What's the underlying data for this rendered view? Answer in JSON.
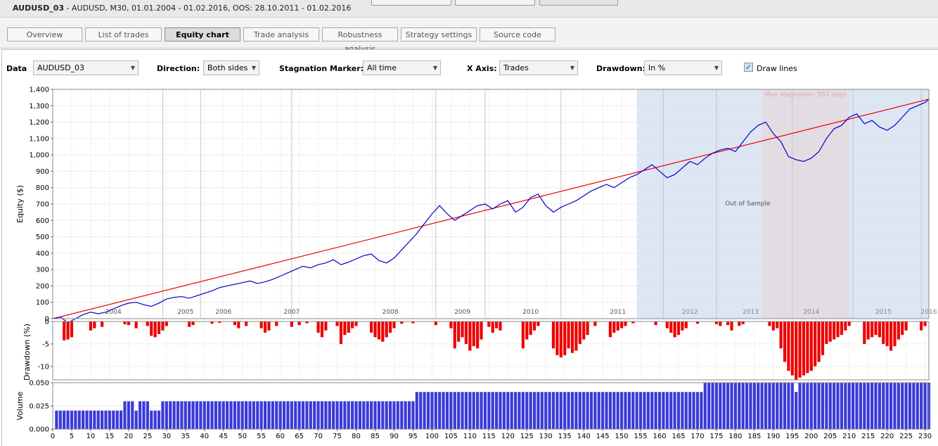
{
  "window": {
    "title_bold": "AUDUSD_03",
    "title_rest": " - AUDUSD, M30, 01.01.2004 - 01.02.2016, OOS: 28.10.2011 - 01.02.2016"
  },
  "tabs": [
    {
      "label": "Overview",
      "active": false
    },
    {
      "label": "List of trades",
      "active": false
    },
    {
      "label": "Equity chart",
      "active": true
    },
    {
      "label": "Trade analysis",
      "active": false
    },
    {
      "label": "Robustness analysis",
      "active": false
    },
    {
      "label": "Strategy settings",
      "active": false
    },
    {
      "label": "Source code",
      "active": false
    }
  ],
  "controls": {
    "data_label": "Data",
    "data_value": "AUDUSD_03",
    "direction_label": "Direction:",
    "direction_value": "Both sides",
    "stagnation_label": "Stagnation Marker:",
    "stagnation_value": "All time",
    "xaxis_label": "X Axis:",
    "xaxis_value": "Trades",
    "drawdown_label": "Drawdown:",
    "drawdown_value": "In %",
    "draw_lines_label": "Draw lines",
    "draw_lines_checked": true,
    "arrow_glyph": "▼",
    "check_glyph": "✓"
  },
  "colors": {
    "equity_line": "#0000cc",
    "trend_line": "#ee0000",
    "drawdown_bar": "#ee0000",
    "volume_bar": "#3a3ad8",
    "oos_shade": "#dde6f4",
    "stagnation_shade": "#e3dce3"
  },
  "chart_data": [
    {
      "type": "line",
      "ylabel": "Equity ($)",
      "ylim": [
        0,
        1400
      ],
      "y_ticks": [
        0,
        100,
        200,
        300,
        400,
        500,
        600,
        700,
        800,
        900,
        1000,
        1100,
        1200,
        1300,
        1400
      ],
      "y_tick_labels": [
        "0",
        "100",
        "200",
        "300",
        "400",
        "500",
        "600",
        "700",
        "800",
        "900",
        "1,000",
        "1,100",
        "1,200",
        "1,300",
        "1,400"
      ],
      "xlim": [
        0,
        231
      ],
      "grid": true,
      "year_labels": [
        {
          "label": "2004",
          "x": 16
        },
        {
          "label": "2005",
          "x": 35
        },
        {
          "label": "2006",
          "x": 45
        },
        {
          "label": "2007",
          "x": 63
        },
        {
          "label": "2008",
          "x": 89
        },
        {
          "label": "2009",
          "x": 108
        },
        {
          "label": "2010",
          "x": 126
        },
        {
          "label": "2011",
          "x": 149
        },
        {
          "label": "2012",
          "x": 168
        },
        {
          "label": "2013",
          "x": 184
        },
        {
          "label": "2014",
          "x": 200
        },
        {
          "label": "2015",
          "x": 219
        },
        {
          "label": "2016",
          "x": 231
        }
      ],
      "year_lines": [
        29,
        39,
        63,
        101,
        114,
        134,
        161,
        175,
        195,
        211,
        229
      ],
      "oos_region": {
        "x_start": 154,
        "x_end": 231,
        "label": "Out of Sample"
      },
      "stagnation_region": {
        "x_start": 187,
        "x_end": 210,
        "label": "Max stagnation: 552 days"
      },
      "series": [
        {
          "type": "line",
          "x": [
            0,
            2,
            4,
            6,
            8,
            10,
            12,
            14,
            16,
            18,
            20,
            22,
            24,
            26,
            28,
            30,
            32,
            34,
            36,
            38,
            40,
            42,
            44,
            46,
            48,
            50,
            52,
            54,
            56,
            58,
            60,
            62,
            64,
            66,
            68,
            70,
            72,
            74,
            76,
            78,
            80,
            82,
            84,
            86,
            88,
            90,
            92,
            94,
            96,
            98,
            100,
            102,
            104,
            106,
            108,
            110,
            112,
            114,
            116,
            118,
            120,
            122,
            124,
            126,
            128,
            130,
            132,
            134,
            136,
            138,
            140,
            142,
            144,
            146,
            148,
            150,
            152,
            154,
            156,
            158,
            160,
            162,
            164,
            166,
            168,
            170,
            172,
            174,
            176,
            178,
            180,
            182,
            184,
            186,
            188,
            190,
            192,
            194,
            196,
            198,
            200,
            202,
            204,
            206,
            208,
            210,
            212,
            214,
            216,
            218,
            220,
            222,
            224,
            226,
            228,
            230,
            231
          ],
          "y": [
            0,
            10,
            -25,
            0,
            25,
            40,
            30,
            40,
            60,
            80,
            95,
            100,
            85,
            75,
            95,
            120,
            130,
            135,
            125,
            140,
            155,
            170,
            190,
            200,
            210,
            220,
            230,
            215,
            225,
            240,
            260,
            280,
            300,
            320,
            310,
            330,
            340,
            360,
            330,
            345,
            365,
            385,
            395,
            355,
            340,
            370,
            420,
            470,
            520,
            580,
            640,
            690,
            640,
            600,
            630,
            660,
            690,
            700,
            670,
            700,
            720,
            650,
            680,
            740,
            760,
            690,
            650,
            680,
            700,
            720,
            750,
            780,
            800,
            820,
            800,
            830,
            860,
            880,
            910,
            940,
            900,
            860,
            880,
            920,
            960,
            940,
            980,
            1010,
            1030,
            1040,
            1020,
            1080,
            1140,
            1180,
            1200,
            1130,
            1080,
            990,
            970,
            960,
            980,
            1020,
            1100,
            1160,
            1180,
            1230,
            1250,
            1190,
            1210,
            1170,
            1150,
            1180,
            1230,
            1280,
            1300,
            1320,
            1340
          ]
        },
        {
          "type": "line",
          "x": [
            0,
            231
          ],
          "y": [
            0,
            1340
          ]
        }
      ]
    },
    {
      "type": "bar",
      "ylabel": "Drawdown (%)",
      "ylim": [
        -13,
        0
      ],
      "y_ticks": [
        0,
        -5,
        -10
      ],
      "y_tick_labels": [
        "0",
        "-5",
        "-10"
      ],
      "grid": true,
      "bars": [
        {
          "x": 3,
          "v": -4.2
        },
        {
          "x": 4,
          "v": -4.0
        },
        {
          "x": 5,
          "v": -3.5
        },
        {
          "x": 10,
          "v": -2.0
        },
        {
          "x": 11,
          "v": -1.5
        },
        {
          "x": 13,
          "v": -1.2
        },
        {
          "x": 19,
          "v": -0.6
        },
        {
          "x": 20,
          "v": -0.8
        },
        {
          "x": 22,
          "v": -1.5
        },
        {
          "x": 25,
          "v": -1.0
        },
        {
          "x": 26,
          "v": -3.2
        },
        {
          "x": 27,
          "v": -3.5
        },
        {
          "x": 28,
          "v": -2.8
        },
        {
          "x": 29,
          "v": -2.0
        },
        {
          "x": 30,
          "v": -1.0
        },
        {
          "x": 36,
          "v": -1.2
        },
        {
          "x": 37,
          "v": -0.8
        },
        {
          "x": 42,
          "v": -0.5
        },
        {
          "x": 44,
          "v": -0.3
        },
        {
          "x": 48,
          "v": -0.8
        },
        {
          "x": 49,
          "v": -1.5
        },
        {
          "x": 51,
          "v": -1.0
        },
        {
          "x": 55,
          "v": -1.5
        },
        {
          "x": 56,
          "v": -2.5
        },
        {
          "x": 57,
          "v": -2.0
        },
        {
          "x": 59,
          "v": -1.0
        },
        {
          "x": 63,
          "v": -1.2
        },
        {
          "x": 65,
          "v": -0.8
        },
        {
          "x": 67,
          "v": -0.4
        },
        {
          "x": 70,
          "v": -2.5
        },
        {
          "x": 71,
          "v": -3.5
        },
        {
          "x": 72,
          "v": -2.0
        },
        {
          "x": 75,
          "v": -1.0
        },
        {
          "x": 76,
          "v": -5.0
        },
        {
          "x": 77,
          "v": -3.0
        },
        {
          "x": 78,
          "v": -2.5
        },
        {
          "x": 79,
          "v": -1.5
        },
        {
          "x": 80,
          "v": -1.0
        },
        {
          "x": 84,
          "v": -2.5
        },
        {
          "x": 85,
          "v": -3.5
        },
        {
          "x": 86,
          "v": -4.0
        },
        {
          "x": 87,
          "v": -4.5
        },
        {
          "x": 88,
          "v": -3.5
        },
        {
          "x": 89,
          "v": -2.5
        },
        {
          "x": 90,
          "v": -1.5
        },
        {
          "x": 92,
          "v": -0.5
        },
        {
          "x": 95,
          "v": -0.4
        },
        {
          "x": 101,
          "v": -0.8
        },
        {
          "x": 105,
          "v": -1.5
        },
        {
          "x": 106,
          "v": -6.0
        },
        {
          "x": 107,
          "v": -4.5
        },
        {
          "x": 108,
          "v": -3.5
        },
        {
          "x": 109,
          "v": -5.0
        },
        {
          "x": 110,
          "v": -6.5
        },
        {
          "x": 111,
          "v": -5.5
        },
        {
          "x": 112,
          "v": -6.0
        },
        {
          "x": 113,
          "v": -4.0
        },
        {
          "x": 115,
          "v": -1.2
        },
        {
          "x": 116,
          "v": -2.5
        },
        {
          "x": 117,
          "v": -1.5
        },
        {
          "x": 118,
          "v": -2.0
        },
        {
          "x": 124,
          "v": -6.0
        },
        {
          "x": 125,
          "v": -4.0
        },
        {
          "x": 126,
          "v": -3.0
        },
        {
          "x": 127,
          "v": -2.0
        },
        {
          "x": 128,
          "v": -1.0
        },
        {
          "x": 132,
          "v": -6.0
        },
        {
          "x": 133,
          "v": -7.5
        },
        {
          "x": 134,
          "v": -8.0
        },
        {
          "x": 135,
          "v": -7.5
        },
        {
          "x": 136,
          "v": -6.0
        },
        {
          "x": 137,
          "v": -7.0
        },
        {
          "x": 138,
          "v": -6.5
        },
        {
          "x": 139,
          "v": -5.0
        },
        {
          "x": 140,
          "v": -4.0
        },
        {
          "x": 141,
          "v": -3.0
        },
        {
          "x": 143,
          "v": -1.0
        },
        {
          "x": 147,
          "v": -3.5
        },
        {
          "x": 148,
          "v": -2.5
        },
        {
          "x": 149,
          "v": -2.0
        },
        {
          "x": 150,
          "v": -1.5
        },
        {
          "x": 151,
          "v": -1.0
        },
        {
          "x": 153,
          "v": -0.4
        },
        {
          "x": 159,
          "v": -0.8
        },
        {
          "x": 162,
          "v": -1.5
        },
        {
          "x": 163,
          "v": -2.5
        },
        {
          "x": 164,
          "v": -3.5
        },
        {
          "x": 165,
          "v": -3.0
        },
        {
          "x": 166,
          "v": -2.0
        },
        {
          "x": 167,
          "v": -1.5
        },
        {
          "x": 170,
          "v": -0.5
        },
        {
          "x": 175,
          "v": -0.6
        },
        {
          "x": 176,
          "v": -1.0
        },
        {
          "x": 178,
          "v": -0.8
        },
        {
          "x": 179,
          "v": -2.0
        },
        {
          "x": 181,
          "v": -1.0
        },
        {
          "x": 182,
          "v": -0.6
        },
        {
          "x": 189,
          "v": -1.0
        },
        {
          "x": 190,
          "v": -2.0
        },
        {
          "x": 191,
          "v": -1.5
        },
        {
          "x": 192,
          "v": -6.0
        },
        {
          "x": 193,
          "v": -9.0
        },
        {
          "x": 194,
          "v": -11.0
        },
        {
          "x": 195,
          "v": -12.0
        },
        {
          "x": 196,
          "v": -13.0
        },
        {
          "x": 197,
          "v": -12.5
        },
        {
          "x": 198,
          "v": -12.0
        },
        {
          "x": 199,
          "v": -11.5
        },
        {
          "x": 200,
          "v": -11.0
        },
        {
          "x": 201,
          "v": -10.0
        },
        {
          "x": 202,
          "v": -9.0
        },
        {
          "x": 203,
          "v": -7.5
        },
        {
          "x": 204,
          "v": -5.0
        },
        {
          "x": 205,
          "v": -4.5
        },
        {
          "x": 206,
          "v": -4.0
        },
        {
          "x": 207,
          "v": -3.5
        },
        {
          "x": 208,
          "v": -3.0
        },
        {
          "x": 209,
          "v": -2.0
        },
        {
          "x": 210,
          "v": -1.0
        },
        {
          "x": 214,
          "v": -5.0
        },
        {
          "x": 215,
          "v": -4.0
        },
        {
          "x": 216,
          "v": -3.5
        },
        {
          "x": 217,
          "v": -3.0
        },
        {
          "x": 218,
          "v": -3.5
        },
        {
          "x": 219,
          "v": -5.0
        },
        {
          "x": 220,
          "v": -5.5
        },
        {
          "x": 221,
          "v": -6.5
        },
        {
          "x": 222,
          "v": -5.5
        },
        {
          "x": 223,
          "v": -4.0
        },
        {
          "x": 224,
          "v": -3.0
        },
        {
          "x": 225,
          "v": -2.0
        },
        {
          "x": 229,
          "v": -2.0
        },
        {
          "x": 230,
          "v": -1.0
        }
      ]
    },
    {
      "type": "bar",
      "ylabel": "Volume",
      "ylim": [
        0,
        0.05
      ],
      "y_ticks": [
        0,
        0.025,
        0.05
      ],
      "y_tick_labels": [
        "0.000",
        "0.025",
        "0.050"
      ],
      "x_ticks": [
        0,
        5,
        10,
        15,
        20,
        25,
        30,
        35,
        40,
        45,
        50,
        55,
        60,
        65,
        70,
        75,
        80,
        85,
        90,
        95,
        100,
        105,
        110,
        115,
        120,
        125,
        130,
        135,
        140,
        145,
        150,
        155,
        160,
        165,
        170,
        175,
        180,
        185,
        190,
        195,
        200,
        205,
        210,
        215,
        220,
        225,
        230
      ],
      "grid": true,
      "segments": [
        {
          "from": 1,
          "to": 18,
          "v": 0.02
        },
        {
          "from": 19,
          "to": 21,
          "v": 0.03
        },
        {
          "from": 22,
          "to": 22,
          "v": 0.02
        },
        {
          "from": 23,
          "to": 25,
          "v": 0.03
        },
        {
          "from": 26,
          "to": 28,
          "v": 0.02
        },
        {
          "from": 29,
          "to": 95,
          "v": 0.03
        },
        {
          "from": 96,
          "to": 171,
          "v": 0.04
        },
        {
          "from": 172,
          "to": 195,
          "v": 0.05
        },
        {
          "from": 196,
          "to": 196,
          "v": 0.04
        },
        {
          "from": 197,
          "to": 231,
          "v": 0.05
        }
      ]
    }
  ]
}
